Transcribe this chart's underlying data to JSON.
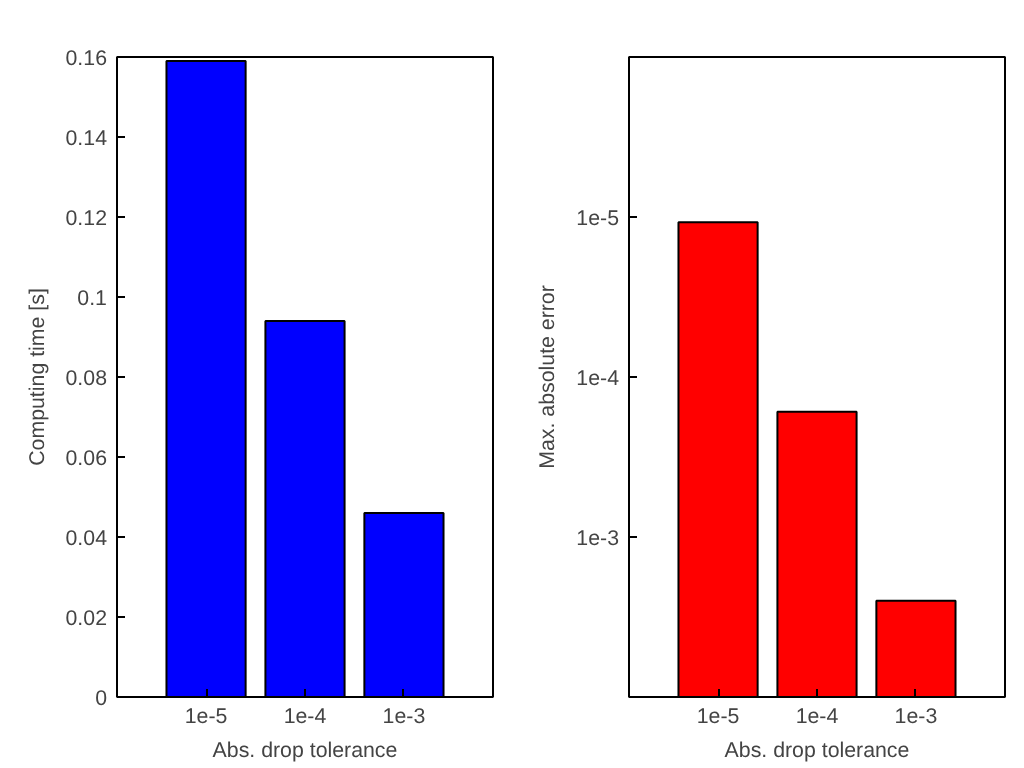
{
  "chart_data": [
    {
      "type": "bar",
      "xlabel": "Abs. drop tolerance",
      "ylabel": "Computing time [s]",
      "categories": [
        "1e-5",
        "1e-4",
        "1e-3"
      ],
      "values": [
        0.159,
        0.094,
        0.046
      ],
      "color": "#0000ff",
      "ylim": [
        0,
        0.16
      ],
      "yticks": [
        0,
        0.02,
        0.04,
        0.06,
        0.08,
        0.1,
        0.12,
        0.14,
        0.16
      ],
      "grid": false
    },
    {
      "type": "bar",
      "xlabel": "Abs. drop tolerance",
      "ylabel": "Max. absolute error",
      "categories": [
        "1e-5",
        "1e-4",
        "1e-3"
      ],
      "base": [
        0.01,
        0.01,
        0.01
      ],
      "values": [
        -0.0099892,
        -0.009835,
        -0.0075
      ],
      "color": "#ff0000",
      "log": true,
      "ylim": [
        0.01,
        1e-06
      ],
      "yticks": [
        {
          "value": 1e-05,
          "label": "1e-5"
        },
        {
          "value": 0.0001,
          "label": "1e-4"
        },
        {
          "value": 0.001,
          "label": "1e-3"
        }
      ],
      "grid": false
    }
  ]
}
